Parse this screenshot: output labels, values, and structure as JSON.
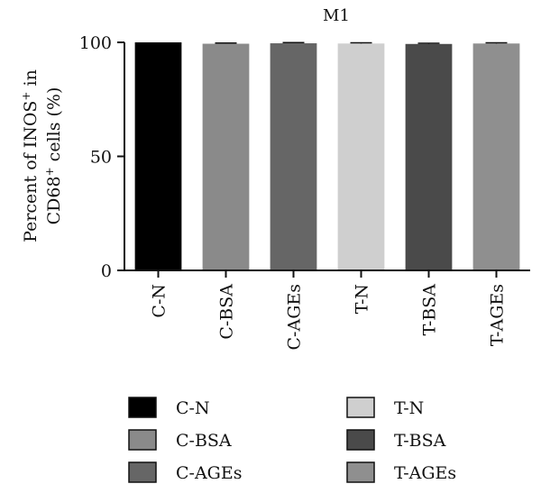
{
  "chart_data": {
    "type": "bar",
    "title": "M1",
    "ylabel_line1": "Percent of INOS",
    "ylabel_line1_sup": "+",
    "ylabel_line1_end": " in",
    "ylabel_line2": "CD68",
    "ylabel_line2_sup": "+",
    "ylabel_line2_end": " cells (%)",
    "categories": [
      "C-N",
      "C-BSA",
      "C-AGEs",
      "T-N",
      "T-BSA",
      "T-AGEs"
    ],
    "values": [
      100,
      99.4,
      99.6,
      99.5,
      99.3,
      99.5
    ],
    "errors": [
      0,
      0.3,
      0.3,
      0.3,
      0.3,
      0.3
    ],
    "colors": [
      "#000000",
      "#8a8a8a",
      "#666666",
      "#cfcfcf",
      "#4a4a4a",
      "#8f8f8f"
    ],
    "ylim": [
      0,
      100
    ],
    "yticks": [
      0,
      50,
      100
    ],
    "legend": [
      "C-N",
      "T-N",
      "C-BSA",
      "T-BSA",
      "C-AGEs",
      "T-AGEs"
    ],
    "legend_colors": [
      "#000000",
      "#cfcfcf",
      "#8a8a8a",
      "#4a4a4a",
      "#666666",
      "#8f8f8f"
    ],
    "legend_position": "bottom",
    "grid": false
  }
}
